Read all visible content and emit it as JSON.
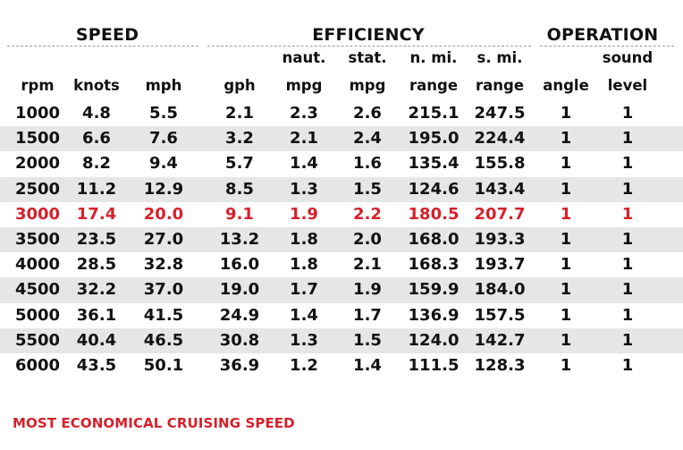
{
  "table": {
    "groups": {
      "speed": "SPEED",
      "efficiency": "EFFICIENCY",
      "operation": "OPERATION"
    },
    "columns": [
      {
        "top": "",
        "bottom": "rpm"
      },
      {
        "top": "",
        "bottom": "knots"
      },
      {
        "top": "",
        "bottom": "mph"
      },
      {
        "top": "",
        "bottom": "gph"
      },
      {
        "top": "naut.",
        "bottom": "mpg"
      },
      {
        "top": "stat.",
        "bottom": "mpg"
      },
      {
        "top": "n. mi.",
        "bottom": "range"
      },
      {
        "top": "s. mi.",
        "bottom": "range"
      },
      {
        "top": "",
        "bottom": "angle"
      },
      {
        "top": "sound",
        "bottom": "level"
      }
    ],
    "rows": [
      [
        "1000",
        "4.8",
        "5.5",
        "2.1",
        "2.3",
        "2.6",
        "215.1",
        "247.5",
        "1",
        "1"
      ],
      [
        "1500",
        "6.6",
        "7.6",
        "3.2",
        "2.1",
        "2.4",
        "195.0",
        "224.4",
        "1",
        "1"
      ],
      [
        "2000",
        "8.2",
        "9.4",
        "5.7",
        "1.4",
        "1.6",
        "135.4",
        "155.8",
        "1",
        "1"
      ],
      [
        "2500",
        "11.2",
        "12.9",
        "8.5",
        "1.3",
        "1.5",
        "124.6",
        "143.4",
        "1",
        "1"
      ],
      [
        "3000",
        "17.4",
        "20.0",
        "9.1",
        "1.9",
        "2.2",
        "180.5",
        "207.7",
        "1",
        "1"
      ],
      [
        "3500",
        "23.5",
        "27.0",
        "13.2",
        "1.8",
        "2.0",
        "168.0",
        "193.3",
        "1",
        "1"
      ],
      [
        "4000",
        "28.5",
        "32.8",
        "16.0",
        "1.8",
        "2.1",
        "168.3",
        "193.7",
        "1",
        "1"
      ],
      [
        "4500",
        "32.2",
        "37.0",
        "19.0",
        "1.7",
        "1.9",
        "159.9",
        "184.0",
        "1",
        "1"
      ],
      [
        "5000",
        "36.1",
        "41.5",
        "24.9",
        "1.4",
        "1.7",
        "136.9",
        "157.5",
        "1",
        "1"
      ],
      [
        "5500",
        "40.4",
        "46.5",
        "30.8",
        "1.3",
        "1.5",
        "124.0",
        "142.7",
        "1",
        "1"
      ],
      [
        "6000",
        "43.5",
        "50.1",
        "36.9",
        "1.2",
        "1.4",
        "111.5",
        "128.3",
        "1",
        "1"
      ]
    ],
    "highlight_row": 4
  },
  "footnote": "MOST ECONOMICAL CRUISING SPEED",
  "colors": {
    "highlight": "#d6202c",
    "row_shade": "#e6e6e6",
    "text": "#111111"
  }
}
